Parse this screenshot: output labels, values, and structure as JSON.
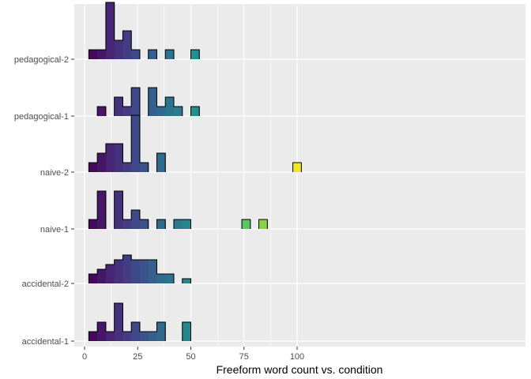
{
  "chart_data": {
    "type": "ridgeline-histogram",
    "title": "",
    "xlabel": "Freeform word count vs. condition",
    "ylabel": "",
    "xlim": [
      0,
      102
    ],
    "x_ticks": [
      0,
      25,
      50,
      75,
      100
    ],
    "x_tick_labels": [
      "0",
      "25",
      "50",
      "75",
      "100"
    ],
    "bin_width": 4,
    "bin_start": 2,
    "grid": true,
    "legend": "none",
    "colors": {
      "panel": "#ebebeb",
      "grid": "#ffffff",
      "outline": "#000000",
      "text": "#4d4d4d"
    },
    "palette": "viridis",
    "color_range": [
      2,
      102
    ],
    "categories": [
      "accidental-1",
      "accidental-2",
      "naive-1",
      "naive-2",
      "pedagogical-1",
      "pedagogical-2"
    ],
    "series": [
      {
        "name": "accidental-1",
        "heights": [
          1,
          2,
          1,
          4,
          1,
          2,
          1,
          1,
          2,
          0,
          0,
          2
        ]
      },
      {
        "name": "accidental-2",
        "heights": [
          1,
          1.5,
          2,
          2.5,
          3,
          2.5,
          2.5,
          2.5,
          1,
          1,
          0,
          0.5
        ]
      },
      {
        "name": "naive-1",
        "heights": [
          1,
          4,
          0,
          4,
          1,
          2,
          1,
          0,
          1,
          0,
          1,
          1,
          0,
          0,
          0,
          0,
          0,
          0,
          1,
          0,
          1
        ]
      },
      {
        "name": "naive-2",
        "heights": [
          1,
          2,
          3,
          3,
          1,
          6,
          1,
          0,
          2,
          0,
          0,
          0,
          0,
          0,
          0,
          0,
          0,
          0,
          0,
          0,
          0,
          0,
          0,
          0,
          1
        ]
      },
      {
        "name": "pedagogical-1",
        "heights": [
          0,
          1,
          0,
          2,
          1,
          3,
          0,
          3,
          1,
          2,
          1,
          0,
          1
        ]
      },
      {
        "name": "pedagogical-2",
        "heights": [
          1,
          1,
          6,
          2,
          3,
          1,
          0,
          1,
          0,
          1,
          0,
          0,
          1
        ]
      }
    ]
  }
}
